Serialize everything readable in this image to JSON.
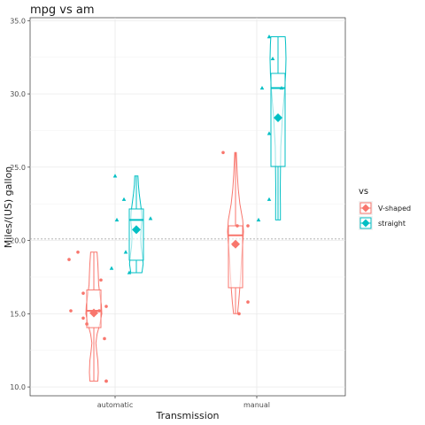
{
  "chart_data": {
    "type": "boxplot-violin-jitter",
    "title": "mpg vs am",
    "xlabel": "Transmission",
    "ylabel": "Miles/(US) gallon",
    "categories": [
      "automatic",
      "manual"
    ],
    "ylim": [
      9.4,
      35.2
    ],
    "yticks": [
      10.0,
      15.0,
      20.0,
      25.0,
      30.0,
      35.0
    ],
    "ytick_labels": [
      "10.0",
      "15.0",
      "20.0",
      "25.0",
      "30.0",
      "35.0"
    ],
    "reference_line": 20.1,
    "grid": true,
    "legend_title": "vs",
    "legend_position": "right",
    "series": [
      {
        "name": "V-shaped",
        "color": "#F8766D",
        "marker": "circle",
        "groups": [
          {
            "category": "automatic",
            "boxplot": {
              "min": 10.4,
              "q1": 14.05,
              "median": 15.2,
              "q3": 16.625,
              "max": 19.2,
              "mean": 15.05
            },
            "violin": {
              "min": 10.4,
              "max": 19.2,
              "profile": [
                [
                  10.4,
                  0.5
                ],
                [
                  11.0,
                  0.55
                ],
                [
                  11.8,
                  0.5
                ],
                [
                  12.4,
                  0.35
                ],
                [
                  13.0,
                  0.25
                ],
                [
                  13.6,
                  0.4
                ],
                [
                  14.3,
                  0.75
                ],
                [
                  15.0,
                  1.0
                ],
                [
                  15.6,
                  0.95
                ],
                [
                  16.3,
                  0.75
                ],
                [
                  17.0,
                  0.6
                ],
                [
                  17.7,
                  0.55
                ],
                [
                  18.4,
                  0.5
                ],
                [
                  19.2,
                  0.4
                ]
              ]
            },
            "points": [
              18.7,
              14.3,
              16.4,
              17.3,
              15.2,
              10.4,
              10.4,
              14.7,
              15.5,
              15.2,
              13.3,
              19.2
            ]
          },
          {
            "category": "manual",
            "boxplot": {
              "min": 15.0,
              "q1": 16.775,
              "median": 20.35,
              "q3": 21.0,
              "max": 26.0,
              "mean": 19.75
            },
            "violin": {
              "min": 15.0,
              "max": 26.0,
              "profile": [
                [
                  15.0,
                  0.25
                ],
                [
                  15.8,
                  0.4
                ],
                [
                  16.8,
                  0.55
                ],
                [
                  17.8,
                  0.65
                ],
                [
                  18.8,
                  0.75
                ],
                [
                  19.8,
                  0.9
                ],
                [
                  20.6,
                  1.0
                ],
                [
                  21.4,
                  0.9
                ],
                [
                  22.5,
                  0.55
                ],
                [
                  23.5,
                  0.35
                ],
                [
                  24.5,
                  0.22
                ],
                [
                  25.3,
                  0.15
                ],
                [
                  26.0,
                  0.1
                ]
              ]
            },
            "points": [
              21.0,
              21.0,
              26.0,
              15.8,
              19.7,
              15.0
            ]
          }
        ]
      },
      {
        "name": "straight",
        "color": "#00BFC4",
        "marker": "triangle",
        "groups": [
          {
            "category": "automatic",
            "boxplot": {
              "min": 17.8,
              "q1": 18.65,
              "median": 21.4,
              "q3": 22.15,
              "max": 24.4,
              "mean": 20.74
            },
            "violin": {
              "min": 17.8,
              "max": 24.4,
              "profile": [
                [
                  17.8,
                  0.7
                ],
                [
                  18.4,
                  0.85
                ],
                [
                  19.0,
                  0.75
                ],
                [
                  19.6,
                  0.6
                ],
                [
                  20.2,
                  0.55
                ],
                [
                  20.8,
                  0.6
                ],
                [
                  21.4,
                  0.7
                ],
                [
                  22.0,
                  0.65
                ],
                [
                  22.6,
                  0.5
                ],
                [
                  23.2,
                  0.35
                ],
                [
                  23.8,
                  0.25
                ],
                [
                  24.4,
                  0.2
                ]
              ]
            },
            "points": [
              21.4,
              18.1,
              24.4,
              22.8,
              19.2,
              17.8,
              21.5
            ]
          },
          {
            "category": "manual",
            "boxplot": {
              "min": 21.4,
              "q1": 25.05,
              "median": 30.4,
              "q3": 31.4,
              "max": 33.9,
              "mean": 28.37
            },
            "violin": {
              "min": 21.4,
              "max": 33.9,
              "profile": [
                [
                  21.4,
                  0.3
                ],
                [
                  22.4,
                  0.3
                ],
                [
                  23.4,
                  0.28
                ],
                [
                  24.4,
                  0.3
                ],
                [
                  25.4,
                  0.32
                ],
                [
                  26.4,
                  0.35
                ],
                [
                  27.4,
                  0.45
                ],
                [
                  28.4,
                  0.55
                ],
                [
                  29.4,
                  0.7
                ],
                [
                  30.4,
                  0.85
                ],
                [
                  31.4,
                  0.95
                ],
                [
                  32.4,
                  1.0
                ],
                [
                  33.4,
                  0.95
                ],
                [
                  33.9,
                  0.9
                ]
              ]
            },
            "points": [
              22.8,
              32.4,
              30.4,
              33.9,
              27.3,
              30.4,
              21.4
            ]
          }
        ]
      }
    ]
  }
}
